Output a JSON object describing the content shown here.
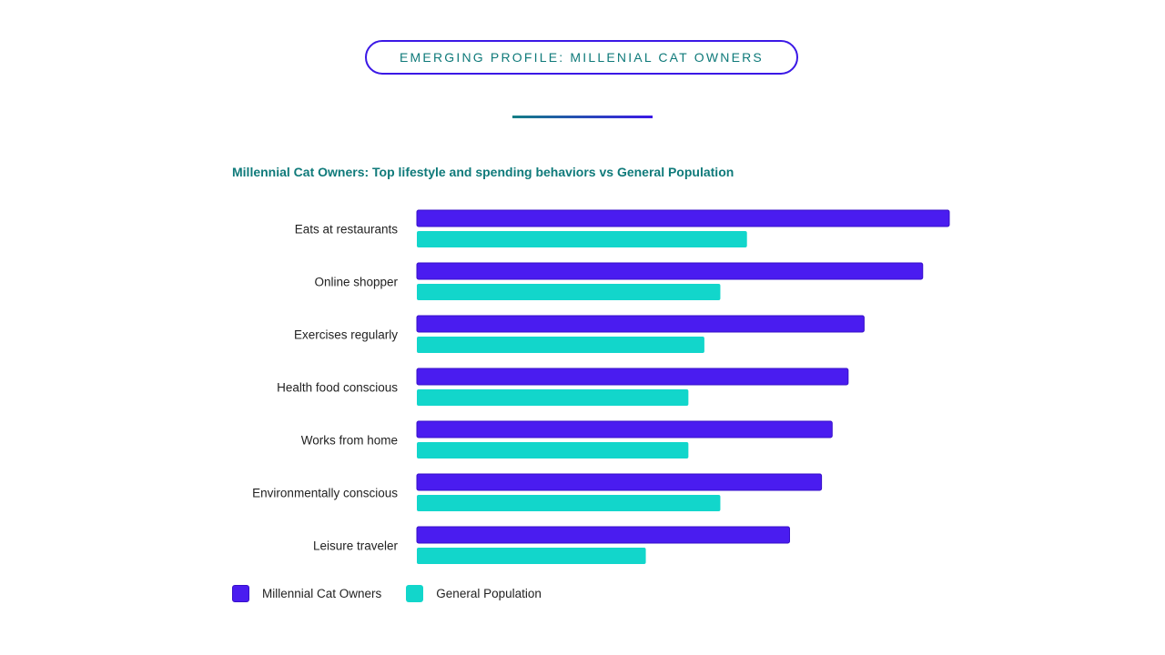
{
  "header": {
    "pill_title": "EMERGING PROFILE: MILLENIAL CAT OWNERS"
  },
  "colors": {
    "millennial": "#4a1cf0",
    "millennial_border": "#3710c9",
    "general": "#12d6cb",
    "accent_teal": "#0f7a7a"
  },
  "chart_data": {
    "type": "bar",
    "orientation": "horizontal",
    "title": "Millennial Cat Owners: Top lifestyle and spending behaviors vs General Population",
    "categories": [
      "Eats at restaurants",
      "Online shopper",
      "Exercises regularly",
      "Health food conscious",
      "Works from home",
      "Environmentally conscious",
      "Leisure traveler"
    ],
    "series": [
      {
        "name": "Millennial Cat Owners",
        "values": [
          100,
          95,
          84,
          81,
          78,
          76,
          70
        ]
      },
      {
        "name": "General Population",
        "values": [
          62,
          57,
          54,
          51,
          51,
          57,
          43
        ]
      }
    ],
    "xlim": [
      0,
      100
    ],
    "grid": false,
    "axes_visible": false,
    "legend_position": "bottom-left"
  }
}
